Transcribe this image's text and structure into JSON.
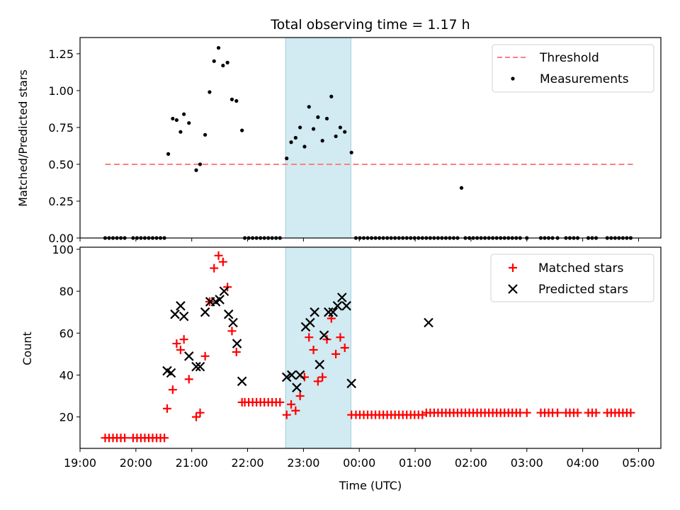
{
  "chart_data": [
    {
      "type": "scatter",
      "title": "Total observing time = 1.17 h",
      "xlabel": "",
      "ylabel": "Matched/Predicted stars",
      "ylim": [
        0,
        1.36
      ],
      "yticks": [
        0.0,
        0.25,
        0.5,
        0.75,
        1.0,
        1.25
      ],
      "ytick_labels": [
        "0.00",
        "0.25",
        "0.50",
        "0.75",
        "1.00",
        "1.25"
      ],
      "xlim_hours": [
        19.0,
        29.4
      ],
      "shaded_span_hours": [
        22.68,
        23.85
      ],
      "legend_position": "top-right",
      "threshold": {
        "name": "Threshold",
        "value": 0.5,
        "x_from": 19.45,
        "x_to": 28.9,
        "color": "#ff7f7f"
      },
      "series": [
        {
          "name": "Measurements",
          "color": "#000000",
          "x": [
            19.45,
            19.52,
            19.59,
            19.66,
            19.73,
            19.8,
            19.95,
            20.02,
            20.09,
            20.16,
            20.23,
            20.3,
            20.37,
            20.44,
            20.51,
            20.58,
            20.66,
            20.73,
            20.8,
            20.86,
            20.95,
            21.08,
            21.15,
            21.24,
            21.32,
            21.4,
            21.48,
            21.56,
            21.64,
            21.72,
            21.8,
            21.9,
            21.95,
            22.02,
            22.09,
            22.16,
            22.23,
            22.3,
            22.37,
            22.44,
            22.51,
            22.58,
            22.7,
            22.78,
            22.86,
            22.94,
            23.02,
            23.1,
            23.18,
            23.26,
            23.34,
            23.42,
            23.5,
            23.58,
            23.66,
            23.74,
            23.86,
            23.94,
            24.01,
            24.08,
            24.15,
            24.22,
            24.29,
            24.36,
            24.43,
            24.5,
            24.57,
            24.64,
            24.71,
            24.78,
            24.85,
            24.92,
            24.99,
            25.06,
            25.13,
            25.2,
            25.27,
            25.34,
            25.41,
            25.48,
            25.55,
            25.62,
            25.69,
            25.76,
            25.83,
            25.9,
            25.97,
            26.04,
            26.11,
            26.18,
            26.25,
            26.32,
            26.39,
            26.46,
            26.53,
            26.6,
            26.67,
            26.74,
            26.81,
            26.88,
            27.0,
            27.25,
            27.32,
            27.39,
            27.46,
            27.55,
            27.7,
            27.77,
            27.84,
            27.91,
            28.1,
            28.17,
            28.24,
            28.44,
            28.51,
            28.58,
            28.65,
            28.72,
            28.79,
            28.86
          ],
          "y": [
            0,
            0,
            0,
            0,
            0,
            0,
            0,
            0,
            0,
            0,
            0,
            0,
            0,
            0,
            0,
            0.57,
            0.81,
            0.8,
            0.72,
            0.84,
            0.78,
            0.46,
            0.5,
            0.7,
            0.99,
            1.2,
            1.29,
            1.17,
            1.19,
            0.94,
            0.93,
            0.73,
            0,
            0,
            0,
            0,
            0,
            0,
            0,
            0,
            0,
            0,
            0.54,
            0.65,
            0.68,
            0.75,
            0.62,
            0.89,
            0.74,
            0.82,
            0.66,
            0.81,
            0.96,
            0.69,
            0.75,
            0.72,
            0.58,
            0,
            0,
            0,
            0,
            0,
            0,
            0,
            0,
            0,
            0,
            0,
            0,
            0,
            0,
            0,
            0,
            0,
            0,
            0,
            0,
            0,
            0,
            0,
            0,
            0,
            0,
            0,
            0.34,
            0,
            0,
            0,
            0,
            0,
            0,
            0,
            0,
            0,
            0,
            0,
            0,
            0,
            0,
            0,
            0,
            0,
            0,
            0,
            0,
            0,
            0,
            0,
            0,
            0,
            0,
            0,
            0,
            0,
            0,
            0,
            0,
            0,
            0,
            0
          ]
        }
      ]
    },
    {
      "type": "scatter",
      "title": "",
      "xlabel": "Time (UTC)",
      "ylabel": "Count",
      "ylim": [
        5,
        101
      ],
      "yticks": [
        20,
        40,
        60,
        80,
        100
      ],
      "ytick_labels": [
        "20",
        "40",
        "60",
        "80",
        "100"
      ],
      "xlim_hours": [
        19.0,
        29.4
      ],
      "xticks_hours": [
        19,
        20,
        21,
        22,
        23,
        24,
        25,
        26,
        27,
        28,
        29
      ],
      "xtick_labels": [
        "19:00",
        "20:00",
        "21:00",
        "22:00",
        "23:00",
        "00:00",
        "01:00",
        "02:00",
        "03:00",
        "04:00",
        "05:00"
      ],
      "shaded_span_hours": [
        22.68,
        23.85
      ],
      "legend_position": "top-right",
      "series": [
        {
          "name": "Matched stars",
          "marker": "plus",
          "color": "#ff0000",
          "x": [
            19.45,
            19.52,
            19.59,
            19.66,
            19.73,
            19.8,
            19.95,
            20.02,
            20.09,
            20.16,
            20.23,
            20.3,
            20.37,
            20.44,
            20.51,
            20.56,
            20.66,
            20.73,
            20.8,
            20.86,
            20.95,
            21.08,
            21.15,
            21.24,
            21.32,
            21.4,
            21.48,
            21.56,
            21.64,
            21.72,
            21.8,
            21.9,
            21.95,
            22.02,
            22.09,
            22.16,
            22.23,
            22.3,
            22.37,
            22.44,
            22.51,
            22.58,
            22.7,
            22.78,
            22.86,
            22.94,
            23.02,
            23.1,
            23.18,
            23.26,
            23.34,
            23.42,
            23.5,
            23.58,
            23.66,
            23.74,
            23.86,
            23.94,
            24.01,
            24.08,
            24.15,
            24.22,
            24.29,
            24.36,
            24.43,
            24.5,
            24.57,
            24.64,
            24.71,
            24.78,
            24.85,
            24.92,
            24.99,
            25.06,
            25.13,
            25.2,
            25.27,
            25.34,
            25.41,
            25.48,
            25.55,
            25.62,
            25.69,
            25.76,
            25.83,
            25.9,
            25.97,
            26.04,
            26.11,
            26.18,
            26.25,
            26.32,
            26.39,
            26.46,
            26.53,
            26.6,
            26.67,
            26.74,
            26.81,
            26.88,
            27.0,
            27.25,
            27.32,
            27.39,
            27.46,
            27.55,
            27.7,
            27.77,
            27.84,
            27.91,
            28.1,
            28.17,
            28.24,
            28.44,
            28.51,
            28.58,
            28.65,
            28.72,
            28.79,
            28.86
          ],
          "y": [
            10,
            10,
            10,
            10,
            10,
            10,
            10,
            10,
            10,
            10,
            10,
            10,
            10,
            10,
            10,
            24,
            33,
            55,
            52,
            57,
            38,
            20,
            22,
            49,
            75,
            91,
            97,
            94,
            82,
            61,
            51,
            27,
            27,
            27,
            27,
            27,
            27,
            27,
            27,
            27,
            27,
            27,
            21,
            26,
            23,
            30,
            39,
            58,
            52,
            37,
            39,
            57,
            67,
            50,
            58,
            53,
            21,
            21,
            21,
            21,
            21,
            21,
            21,
            21,
            21,
            21,
            21,
            21,
            21,
            21,
            21,
            21,
            21,
            21,
            21,
            22,
            22,
            22,
            22,
            22,
            22,
            22,
            22,
            22,
            22,
            22,
            22,
            22,
            22,
            22,
            22,
            22,
            22,
            22,
            22,
            22,
            22,
            22,
            22,
            22,
            22,
            22,
            22,
            22,
            22,
            22,
            22,
            22,
            22,
            22,
            22,
            22,
            22,
            22,
            22,
            22,
            22,
            22,
            22,
            22
          ]
        },
        {
          "name": "Predicted stars",
          "marker": "x",
          "color": "#000000",
          "x": [
            20.56,
            20.63,
            20.7,
            20.8,
            20.86,
            20.95,
            21.08,
            21.15,
            21.24,
            21.33,
            21.43,
            21.5,
            21.58,
            21.66,
            21.74,
            21.81,
            21.9,
            22.7,
            22.79,
            22.88,
            22.94,
            23.04,
            23.12,
            23.2,
            23.29,
            23.37,
            23.45,
            23.53,
            23.61,
            23.69,
            23.77,
            23.86,
            25.24
          ],
          "y": [
            42,
            41,
            69,
            73,
            68,
            49,
            44,
            44,
            70,
            75,
            75,
            76,
            80,
            69,
            65,
            55,
            37,
            39,
            40,
            34,
            40,
            63,
            65,
            70,
            45,
            59,
            70,
            70,
            73,
            77,
            73,
            36,
            65
          ]
        }
      ]
    }
  ]
}
